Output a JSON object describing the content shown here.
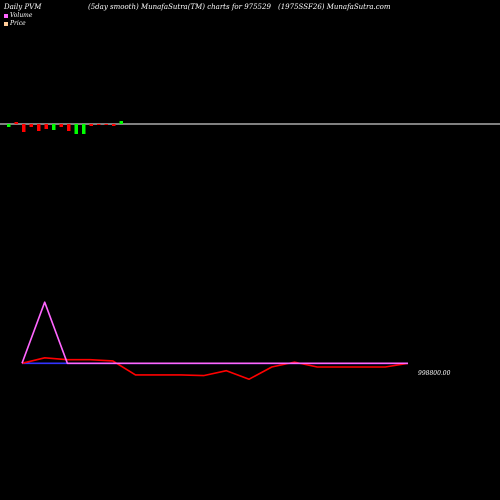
{
  "header": {
    "left": "Daily PVM",
    "mid": "(5day smooth) MunafaSutra(TM) charts for 975529",
    "right": "(1975SSF26) MunafaSutra.com"
  },
  "legend": {
    "volume_label": "Volume",
    "price_label": "Price",
    "volume_color": "#ff66ff",
    "price_color": "#ffcc99"
  },
  "chart_data": [
    {
      "type": "bar",
      "panel": "volume",
      "baseline_color": "#ffffff",
      "up_color": "#00ff00",
      "down_color": "#ff0000",
      "values": [
        3,
        -2,
        8,
        3,
        7,
        5,
        6,
        3,
        7,
        10,
        10,
        2,
        1,
        1,
        2,
        -3
      ],
      "directions": [
        "up",
        "down",
        "down",
        "down",
        "down",
        "down",
        "up",
        "down",
        "down",
        "up",
        "up",
        "down",
        "down",
        "down",
        "down",
        "up"
      ],
      "ylim": [
        -10,
        10
      ]
    },
    {
      "type": "line",
      "panel": "price",
      "price_label": "998800.00",
      "series": [
        {
          "color": "#ff0000",
          "values": [
            998800,
            998809,
            998806,
            998806,
            998804,
            998781,
            998781,
            998781,
            998780,
            998788,
            998774,
            998794,
            998802,
            998794,
            998794,
            998794,
            998794,
            998800
          ]
        },
        {
          "color": "#ff66ff",
          "values": [
            998800,
            998900,
            998800,
            998800,
            998800,
            998800,
            998800,
            998800,
            998800,
            998800,
            998800,
            998800,
            998800,
            998800,
            998800,
            998800,
            998800,
            998800
          ]
        },
        {
          "color": "#3333ff",
          "values": [
            998800,
            998800,
            998800,
            998800,
            998800,
            998800,
            998800,
            998800,
            998800,
            998800,
            998800,
            998800,
            998800,
            998800,
            998800,
            998800,
            998800,
            998800
          ]
        }
      ],
      "ylim": [
        998740,
        998920
      ]
    }
  ]
}
